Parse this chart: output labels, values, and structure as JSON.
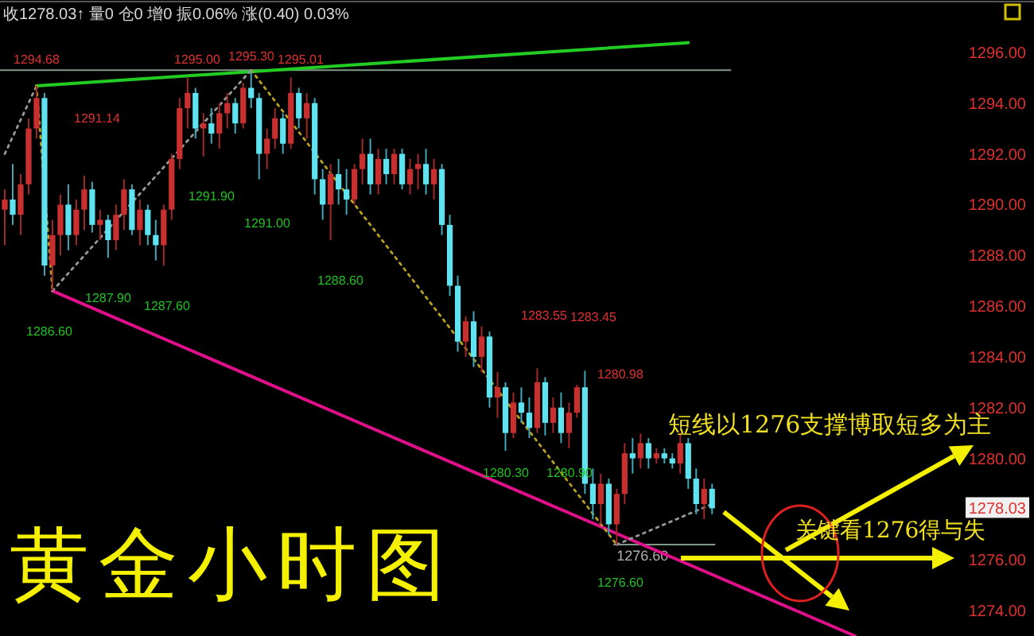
{
  "chart_data": {
    "type": "candlestick",
    "title": "黄金小时图",
    "annotations": [
      "收1278.03↑ 量0 仓0 增0 振0.06% 涨(0.40) 0.03%",
      "短线以1276支撑博取短多为主",
      "关键看1276得与失",
      "1294.68",
      "1291.14",
      "1295.00",
      "1295.30",
      "1295.01",
      "1291.90",
      "1291.00",
      "1287.90",
      "1287.60",
      "1286.60",
      "1288.60",
      "1283.55",
      "1283.45",
      "1280.98",
      "1280.30",
      "1280.90",
      "1276.60"
    ],
    "categories": [
      null,
      null,
      null,
      null,
      null,
      null,
      null,
      null,
      null,
      null,
      null,
      null,
      null,
      null,
      null,
      null,
      null,
      null,
      null,
      null,
      null,
      null,
      null,
      null,
      null,
      null,
      null,
      null,
      null,
      null,
      null,
      null,
      null,
      null,
      null,
      null,
      null,
      null,
      null,
      null,
      null,
      null,
      null,
      null,
      null,
      null,
      null,
      null,
      null,
      null,
      null,
      null,
      null,
      null,
      null,
      null,
      null,
      null,
      null,
      null,
      null,
      null,
      null,
      null,
      null,
      null,
      null,
      null,
      null,
      null,
      null,
      null,
      null,
      null,
      null,
      null,
      null,
      null,
      null,
      null,
      null,
      null,
      null,
      null,
      null,
      null,
      null,
      null,
      null,
      null,
      null,
      null,
      null,
      null,
      null,
      null,
      null,
      null,
      null,
      null,
      null,
      null,
      null,
      null,
      null,
      null,
      null,
      null,
      null,
      null,
      null,
      null,
      null,
      null,
      null,
      null,
      null,
      null,
      null,
      null,
      null
    ],
    "ohlc": [
      [
        1289.8,
        1290.6,
        1288.4,
        1290.2
      ],
      [
        1290.2,
        1291.6,
        1289.2,
        1289.6
      ],
      [
        1289.6,
        1291.2,
        1288.8,
        1290.8
      ],
      [
        1290.8,
        1293.4,
        1290.4,
        1293.0
      ],
      [
        1293.0,
        1294.68,
        1292.6,
        1294.2
      ],
      [
        1294.2,
        1294.4,
        1287.2,
        1287.6
      ],
      [
        1287.6,
        1289.4,
        1286.6,
        1288.8
      ],
      [
        1288.8,
        1290.4,
        1288.0,
        1290.0
      ],
      [
        1290.0,
        1290.8,
        1288.2,
        1288.8
      ],
      [
        1288.8,
        1290.2,
        1288.4,
        1289.8
      ],
      [
        1289.8,
        1291.14,
        1289.0,
        1290.6
      ],
      [
        1290.6,
        1290.9,
        1288.9,
        1289.2
      ],
      [
        1289.2,
        1289.8,
        1288.6,
        1289.4
      ],
      [
        1289.4,
        1289.6,
        1287.9,
        1288.6
      ],
      [
        1288.6,
        1290.0,
        1288.2,
        1289.6
      ],
      [
        1289.6,
        1291.0,
        1289.0,
        1290.6
      ],
      [
        1290.6,
        1290.8,
        1288.8,
        1289.0
      ],
      [
        1289.0,
        1290.2,
        1288.4,
        1289.8
      ],
      [
        1289.8,
        1290.0,
        1288.4,
        1288.8
      ],
      [
        1288.8,
        1289.4,
        1287.8,
        1288.4
      ],
      [
        1288.4,
        1290.0,
        1287.6,
        1289.8
      ],
      [
        1289.8,
        1292.0,
        1289.4,
        1291.8
      ],
      [
        1291.8,
        1294.2,
        1291.4,
        1293.8
      ],
      [
        1293.8,
        1295.0,
        1293.0,
        1294.4
      ],
      [
        1294.4,
        1294.6,
        1292.6,
        1293.0
      ],
      [
        1293.0,
        1293.6,
        1291.9,
        1293.2
      ],
      [
        1293.2,
        1293.8,
        1292.4,
        1292.8
      ],
      [
        1292.8,
        1294.0,
        1292.2,
        1293.6
      ],
      [
        1293.6,
        1294.4,
        1293.0,
        1294.0
      ],
      [
        1294.0,
        1294.2,
        1292.8,
        1293.2
      ],
      [
        1293.2,
        1294.8,
        1293.0,
        1294.6
      ],
      [
        1294.6,
        1295.3,
        1293.8,
        1294.2
      ],
      [
        1294.2,
        1294.4,
        1291.0,
        1292.0
      ],
      [
        1292.0,
        1293.0,
        1291.4,
        1292.6
      ],
      [
        1292.6,
        1293.8,
        1292.2,
        1293.4
      ],
      [
        1293.4,
        1293.6,
        1292.0,
        1292.4
      ],
      [
        1292.4,
        1295.01,
        1292.2,
        1294.4
      ],
      [
        1294.4,
        1294.6,
        1293.0,
        1293.4
      ],
      [
        1293.4,
        1294.4,
        1292.6,
        1294.0
      ],
      [
        1294.0,
        1294.2,
        1290.4,
        1291.0
      ],
      [
        1291.0,
        1291.4,
        1289.4,
        1290.0
      ],
      [
        1290.0,
        1291.6,
        1288.6,
        1291.2
      ],
      [
        1291.2,
        1291.8,
        1290.0,
        1290.6
      ],
      [
        1290.6,
        1291.4,
        1289.6,
        1290.2
      ],
      [
        1290.2,
        1291.6,
        1290.0,
        1291.4
      ],
      [
        1291.4,
        1292.6,
        1290.8,
        1292.0
      ],
      [
        1292.0,
        1292.6,
        1290.4,
        1290.8
      ],
      [
        1290.8,
        1292.2,
        1290.4,
        1291.8
      ],
      [
        1291.8,
        1292.2,
        1290.8,
        1291.2
      ],
      [
        1291.2,
        1292.2,
        1290.8,
        1292.0
      ],
      [
        1292.0,
        1292.2,
        1290.6,
        1290.8
      ],
      [
        1290.8,
        1291.8,
        1290.4,
        1291.4
      ],
      [
        1291.4,
        1292.0,
        1290.6,
        1291.6
      ],
      [
        1291.6,
        1292.2,
        1290.4,
        1290.8
      ],
      [
        1290.8,
        1291.8,
        1290.2,
        1291.4
      ],
      [
        1291.4,
        1291.6,
        1288.8,
        1289.2
      ],
      [
        1289.2,
        1289.6,
        1286.4,
        1286.8
      ],
      [
        1286.8,
        1287.2,
        1284.2,
        1284.6
      ],
      [
        1284.6,
        1285.6,
        1284.0,
        1285.4
      ],
      [
        1285.4,
        1285.8,
        1283.6,
        1284.0
      ],
      [
        1284.0,
        1285.2,
        1283.4,
        1284.8
      ],
      [
        1284.8,
        1285.0,
        1282.0,
        1282.4
      ],
      [
        1282.4,
        1283.4,
        1281.6,
        1282.8
      ],
      [
        1282.8,
        1283.0,
        1280.3,
        1281.0
      ],
      [
        1281.0,
        1282.6,
        1280.8,
        1282.2
      ],
      [
        1282.2,
        1282.8,
        1281.4,
        1281.8
      ],
      [
        1281.8,
        1282.4,
        1280.8,
        1281.2
      ],
      [
        1281.2,
        1283.55,
        1281.0,
        1283.0
      ],
      [
        1283.0,
        1283.2,
        1280.9,
        1281.4
      ],
      [
        1281.4,
        1282.4,
        1281.0,
        1282.0
      ],
      [
        1282.0,
        1282.6,
        1280.6,
        1281.0
      ],
      [
        1281.0,
        1282.2,
        1280.4,
        1281.8
      ],
      [
        1281.8,
        1282.9,
        1281.6,
        1282.8
      ],
      [
        1282.8,
        1283.45,
        1278.6,
        1279.0
      ],
      [
        1279.0,
        1279.6,
        1277.6,
        1278.2
      ],
      [
        1278.2,
        1279.4,
        1277.4,
        1279.0
      ],
      [
        1279.0,
        1279.2,
        1277.0,
        1277.4
      ],
      [
        1277.4,
        1278.8,
        1276.6,
        1278.6
      ],
      [
        1278.6,
        1280.6,
        1278.2,
        1280.2
      ],
      [
        1280.2,
        1280.8,
        1279.4,
        1280.0
      ],
      [
        1280.0,
        1280.98,
        1279.6,
        1280.6
      ],
      [
        1280.6,
        1280.8,
        1279.6,
        1280.0
      ],
      [
        1280.0,
        1280.4,
        1279.8,
        1280.2
      ],
      [
        1280.2,
        1280.4,
        1279.8,
        1280.0
      ],
      [
        1280.0,
        1280.2,
        1279.6,
        1279.8
      ],
      [
        1279.8,
        1281.0,
        1279.4,
        1280.6
      ],
      [
        1280.6,
        1280.8,
        1278.8,
        1279.2
      ],
      [
        1279.2,
        1279.6,
        1277.8,
        1278.2
      ],
      [
        1278.2,
        1279.2,
        1277.6,
        1278.8
      ],
      [
        1278.8,
        1279.0,
        1277.8,
        1278.03
      ],
      null,
      null,
      null,
      null,
      null,
      null,
      null,
      null,
      null,
      null,
      null,
      null,
      null,
      null,
      null,
      null,
      null,
      null,
      null,
      null,
      null,
      null,
      null,
      null,
      null,
      null,
      null,
      null,
      null,
      null,
      null
    ],
    "series": [
      {
        "type": "line",
        "values": [
          null,
          null,
          null,
          null,
          1294.68,
          null,
          null,
          null,
          null,
          null,
          null,
          null,
          null,
          null,
          null,
          null,
          null,
          null,
          null,
          null,
          null,
          null,
          null,
          null,
          null,
          null,
          null,
          null,
          null,
          null,
          null,
          null,
          null,
          null,
          null,
          null,
          null,
          null,
          null,
          null,
          null,
          null,
          null,
          null,
          null,
          null,
          null,
          null,
          null,
          null,
          null,
          null,
          null,
          null,
          null,
          null,
          null,
          null,
          null,
          null,
          null,
          null,
          null,
          null,
          null,
          null,
          null,
          null,
          null,
          null,
          null,
          null,
          null,
          null,
          null,
          null,
          null,
          null,
          null,
          null,
          null,
          null,
          null,
          null,
          null,
          null,
          1296.38,
          null,
          null,
          null,
          null,
          null,
          null,
          null,
          null,
          null,
          null,
          null,
          null,
          null,
          null,
          null,
          null,
          null,
          null,
          null,
          null,
          null,
          null,
          null,
          null,
          null,
          null,
          null,
          null,
          null,
          null,
          null,
          null,
          null,
          null
        ],
        "color": "#22cc22",
        "line_style": "solid"
      },
      {
        "type": "line",
        "values": [
          null,
          null,
          null,
          null,
          null,
          null,
          1286.6,
          null,
          null,
          null,
          null,
          null,
          null,
          null,
          null,
          null,
          null,
          null,
          null,
          null,
          null,
          null,
          null,
          null,
          null,
          null,
          null,
          null,
          null,
          null,
          null,
          null,
          null,
          null,
          null,
          null,
          null,
          null,
          null,
          null,
          null,
          null,
          null,
          null,
          null,
          null,
          null,
          null,
          null,
          null,
          null,
          null,
          null,
          null,
          null,
          null,
          null,
          null,
          null,
          null,
          null,
          null,
          null,
          null,
          null,
          null,
          null,
          null,
          null,
          null,
          null,
          null,
          null,
          null,
          null,
          null,
          null,
          null,
          null,
          null,
          null,
          null,
          null,
          null,
          null,
          null,
          null,
          null,
          null,
          null,
          null,
          null,
          null,
          null,
          null,
          null,
          null,
          null,
          null,
          null,
          null,
          null,
          null,
          null,
          null,
          null,
          null,
          1273.0,
          null,
          null,
          null,
          null,
          null,
          null,
          null,
          null,
          null,
          null,
          null,
          null,
          null
        ],
        "color": "#e0108a",
        "line_style": "solid"
      },
      {
        "type": "line",
        "values": [
          1292,
          null,
          null,
          null,
          1294.68,
          null,
          null,
          null,
          null,
          null,
          null,
          null,
          null,
          null,
          null,
          null,
          null,
          null,
          null,
          null,
          null,
          null,
          null,
          null,
          null,
          null,
          null,
          null,
          null,
          null,
          null,
          null,
          null,
          null,
          null,
          null,
          null,
          null,
          null,
          null,
          null,
          null,
          null,
          null,
          null,
          null,
          null,
          null,
          null,
          null,
          null,
          null,
          null,
          null,
          null,
          null,
          null,
          null,
          null,
          null,
          null,
          null,
          null,
          null,
          null,
          null,
          null,
          null,
          null,
          null,
          null,
          null,
          null,
          null,
          null,
          null,
          null,
          null,
          null,
          null,
          null,
          null,
          null,
          null,
          null,
          null,
          null,
          null,
          null,
          null,
          null,
          null,
          null,
          null,
          null,
          null,
          null,
          null,
          null,
          null,
          null,
          null,
          null,
          null,
          null,
          null,
          null,
          null,
          null,
          null,
          null,
          null,
          null,
          null,
          null,
          null,
          null,
          null,
          null,
          null,
          null
        ],
        "color": "#9a9a9a",
        "line_style": "dotted"
      },
      {
        "type": "line",
        "values": [
          null,
          null,
          null,
          null,
          1294.68,
          null,
          1286.6,
          null,
          null,
          null,
          null,
          null,
          null,
          null,
          null,
          null,
          null,
          null,
          null,
          null,
          null,
          null,
          null,
          null,
          null,
          null,
          null,
          null,
          null,
          null,
          null,
          null,
          null,
          null,
          null,
          null,
          null,
          null,
          null,
          null,
          null,
          null,
          null,
          null,
          null,
          null,
          null,
          null,
          null,
          null,
          null,
          null,
          null,
          null,
          null,
          null,
          null,
          null,
          null,
          null,
          null,
          null,
          null,
          null,
          null,
          null,
          null,
          null,
          null,
          null,
          null,
          null,
          null,
          null,
          null,
          null,
          null,
          null,
          null,
          null,
          null,
          null,
          null,
          null,
          null,
          null,
          null,
          null,
          null,
          null,
          null,
          null,
          null,
          null,
          null,
          null,
          null,
          null,
          null,
          null,
          null,
          null,
          null,
          null,
          null,
          null,
          null,
          null,
          null,
          null,
          null,
          null,
          null,
          null,
          null,
          null,
          null,
          null,
          null,
          null,
          null
        ],
        "color": "#b8a020",
        "line_style": "dotted"
      },
      {
        "type": "line",
        "values": [
          null,
          null,
          null,
          null,
          null,
          null,
          1286.6,
          null,
          null,
          null,
          null,
          null,
          null,
          null,
          null,
          null,
          null,
          null,
          null,
          null,
          null,
          null,
          null,
          null,
          null,
          null,
          null,
          null,
          null,
          null,
          null,
          1295.3,
          null,
          null,
          null,
          null,
          null,
          null,
          null,
          null,
          null,
          null,
          null,
          null,
          null,
          null,
          null,
          null,
          null,
          null,
          null,
          null,
          null,
          null,
          null,
          null,
          null,
          null,
          null,
          null,
          null,
          null,
          null,
          null,
          null,
          null,
          null,
          null,
          null,
          null,
          null,
          null,
          null,
          null,
          null,
          null,
          null,
          null,
          null,
          null,
          null,
          null,
          null,
          null,
          null,
          null,
          null,
          null,
          null,
          null,
          null,
          null,
          null,
          null,
          null,
          null,
          null,
          null,
          null,
          null,
          null,
          null,
          null,
          null,
          null,
          null,
          null,
          null,
          null,
          null,
          null,
          null,
          null,
          null,
          null,
          null,
          null,
          null,
          null,
          null,
          null
        ],
        "color": "#9a9a9a",
        "line_style": "dotted"
      },
      {
        "type": "line",
        "values": [
          null,
          null,
          null,
          null,
          null,
          null,
          null,
          null,
          null,
          null,
          null,
          null,
          null,
          null,
          null,
          null,
          null,
          null,
          null,
          null,
          null,
          null,
          null,
          null,
          null,
          null,
          null,
          null,
          null,
          null,
          null,
          1295.3,
          null,
          null,
          null,
          null,
          null,
          null,
          null,
          null,
          null,
          null,
          null,
          null,
          null,
          null,
          null,
          null,
          null,
          null,
          null,
          null,
          null,
          null,
          null,
          null,
          null,
          null,
          null,
          null,
          null,
          null,
          null,
          null,
          null,
          null,
          null,
          null,
          null,
          null,
          null,
          null,
          null,
          null,
          null,
          null,
          null,
          1276.6,
          null,
          null,
          null,
          null,
          null,
          null,
          null,
          null,
          null,
          null,
          null,
          null,
          null,
          null,
          null,
          null,
          null,
          null,
          null,
          null,
          null,
          null,
          null,
          null,
          null,
          null,
          null,
          null,
          null,
          null,
          null,
          null,
          null,
          null,
          null,
          null,
          null,
          null,
          null,
          null,
          null,
          null,
          null
        ],
        "color": "#b8a020",
        "line_style": "dotted"
      },
      {
        "type": "line",
        "values": [
          null,
          null,
          null,
          null,
          null,
          null,
          null,
          null,
          null,
          null,
          null,
          null,
          null,
          null,
          null,
          null,
          null,
          null,
          null,
          null,
          null,
          null,
          null,
          null,
          null,
          null,
          null,
          null,
          null,
          null,
          null,
          null,
          null,
          null,
          null,
          null,
          null,
          null,
          null,
          null,
          null,
          null,
          null,
          null,
          null,
          null,
          null,
          null,
          null,
          null,
          null,
          null,
          null,
          null,
          null,
          null,
          null,
          null,
          null,
          null,
          null,
          null,
          null,
          null,
          null,
          null,
          null,
          null,
          null,
          null,
          null,
          null,
          null,
          null,
          null,
          null,
          null,
          1276.6,
          null,
          null,
          null,
          null,
          null,
          null,
          null,
          null,
          null,
          null,
          null,
          1278.2,
          null,
          null,
          null,
          null,
          null,
          null,
          null,
          null,
          null,
          null,
          null,
          null,
          null,
          null,
          null,
          null,
          null,
          null,
          null,
          null,
          null,
          null,
          null,
          null,
          null,
          null,
          null,
          null,
          null,
          null,
          null
        ],
        "color": "#9a9a9a",
        "line_style": "dotted"
      }
    ],
    "ref_lines": [
      {
        "axis": "y",
        "value": 1295.3,
        "color": "#7f9a88"
      },
      {
        "axis": "y",
        "value": 1276.6,
        "label": "1276.60",
        "color": "#7f9a88"
      }
    ],
    "ylim": [
      1273,
      1298
    ],
    "yticks": [
      {
        "value": 1274,
        "label": "1274.00"
      },
      {
        "value": 1276,
        "label": "1276.00"
      },
      {
        "value": 1280,
        "label": "1280.00"
      },
      {
        "value": 1282,
        "label": "1282.00"
      },
      {
        "value": 1284,
        "label": "1284.00"
      },
      {
        "value": 1286,
        "label": "1286.00"
      },
      {
        "value": 1288,
        "label": "1288.00"
      },
      {
        "value": 1290,
        "label": "1290.00"
      },
      {
        "value": 1292,
        "label": "1292.00"
      },
      {
        "value": 1294,
        "label": "1294.00"
      },
      {
        "value": 1296,
        "label": "1296.00"
      },
      {
        "value": 1278.03,
        "label": "1278.03"
      }
    ],
    "tick_labels": "y"
  }
}
